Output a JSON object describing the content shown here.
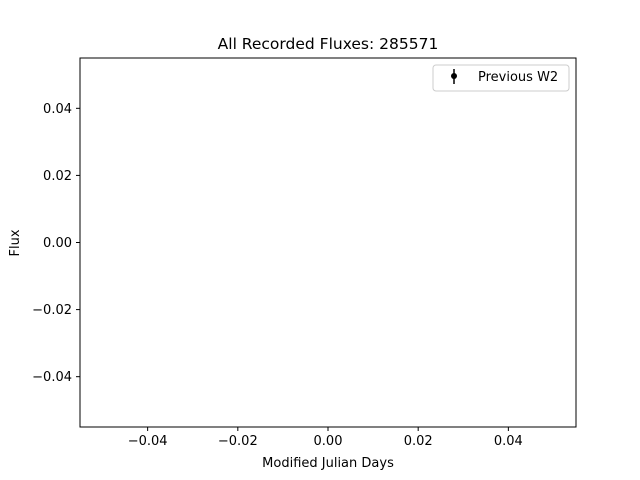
{
  "chart_data": {
    "type": "scatter",
    "title": "All Recorded Fluxes: 285571",
    "xlabel": "Modified Julian Days",
    "ylabel": "Flux",
    "xlim": [
      -0.055,
      0.055
    ],
    "ylim": [
      -0.055,
      0.055
    ],
    "x_ticks": [
      -0.04,
      -0.02,
      0.0,
      0.02,
      0.04
    ],
    "x_tick_labels": [
      "−0.04",
      "−0.02",
      "0.00",
      "0.02",
      "0.04"
    ],
    "y_ticks": [
      -0.04,
      -0.02,
      0.0,
      0.02,
      0.04
    ],
    "y_tick_labels": [
      "−0.04",
      "−0.02",
      "0.00",
      "0.02",
      "0.04"
    ],
    "grid": false,
    "legend": {
      "placement": "top-right",
      "entries": [
        "Previous W2"
      ]
    },
    "series": [
      {
        "name": "Previous W2",
        "marker": "errorbar-dot",
        "color": "#000000",
        "x": [],
        "y": []
      }
    ]
  }
}
